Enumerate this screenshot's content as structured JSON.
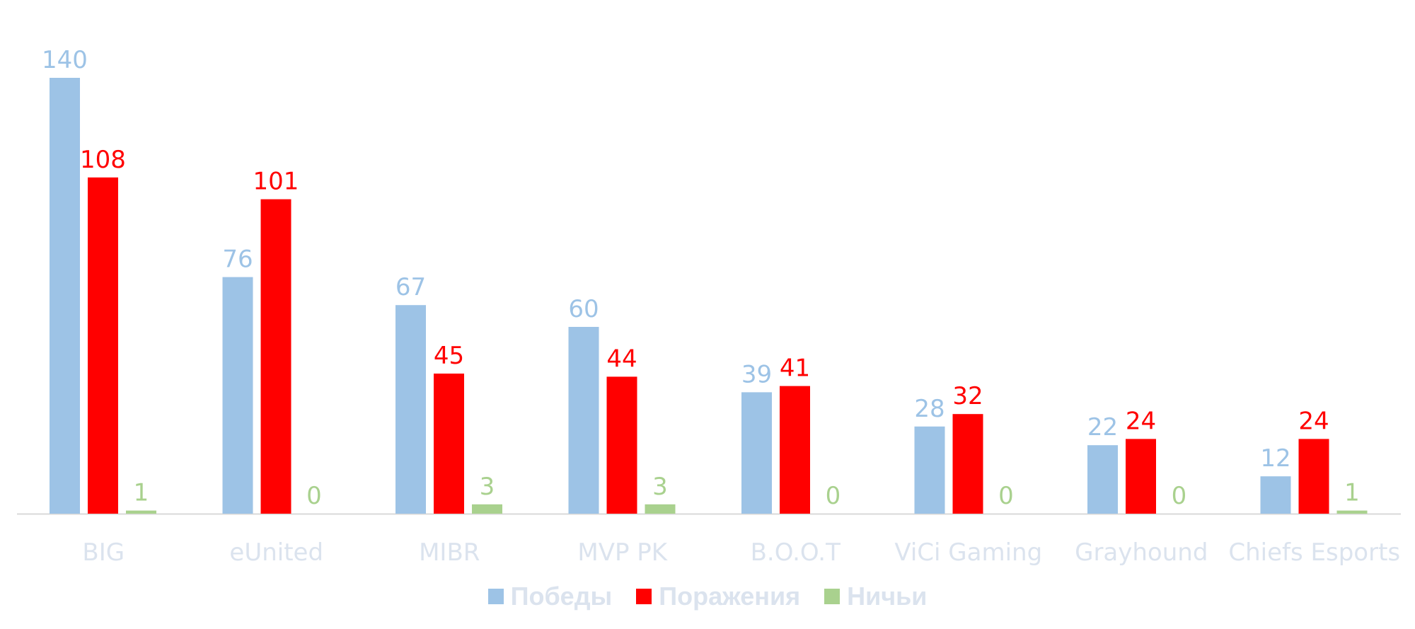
{
  "chart_data": {
    "type": "bar",
    "title": "",
    "xlabel": "",
    "ylabel": "",
    "ylim": [
      0,
      150
    ],
    "grid": false,
    "legend_position": "bottom",
    "categories": [
      "BIG",
      "eUnited",
      "MIBR",
      "MVP PK",
      "B.O.O.T",
      "ViCi Gaming",
      "Grayhound",
      "Chiefs Esports"
    ],
    "series": [
      {
        "name": "Победы",
        "color": "#9dc3e6",
        "values": [
          140,
          76,
          67,
          60,
          39,
          28,
          22,
          12
        ]
      },
      {
        "name": "Поражения",
        "color": "#ff0000",
        "values": [
          108,
          101,
          45,
          44,
          41,
          32,
          24,
          24
        ]
      },
      {
        "name": "Ничьи",
        "color": "#a9d18e",
        "values": [
          1,
          0,
          3,
          3,
          0,
          0,
          0,
          1
        ]
      }
    ],
    "data_labels": true
  }
}
